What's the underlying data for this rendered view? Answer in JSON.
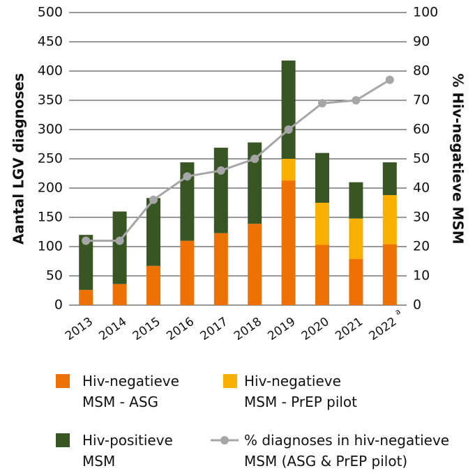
{
  "chart_data": {
    "type": "bar",
    "categories": [
      "2013",
      "2014",
      "2015",
      "2016",
      "2017",
      "2018",
      "2019",
      "2020",
      "2021",
      "2022"
    ],
    "category_footnote": {
      "index": 9,
      "mark": "a"
    },
    "ylabel": "Aantal LGV diagnoses",
    "y2label": "% Hiv-negatieve MSM",
    "ylim": [
      0,
      500
    ],
    "yticks": [
      0,
      50,
      100,
      150,
      200,
      250,
      300,
      350,
      400,
      450,
      500
    ],
    "y2lim": [
      0,
      100
    ],
    "y2ticks": [
      0,
      10,
      20,
      30,
      40,
      50,
      60,
      70,
      80,
      90,
      100
    ],
    "grid": true,
    "stacked": true,
    "series": [
      {
        "name": "Hiv-negatieve MSM - ASG",
        "color": "#ee7203",
        "values": [
          26,
          36,
          67,
          110,
          123,
          139,
          213,
          103,
          79,
          104
        ]
      },
      {
        "name": "Hiv-negatieve MSM - PrEP pilot",
        "color": "#f9b000",
        "values": [
          0,
          0,
          0,
          0,
          0,
          0,
          37,
          72,
          69,
          84
        ]
      },
      {
        "name": "Hiv-positieve MSM",
        "color": "#385623",
        "values": [
          94,
          124,
          116,
          134,
          146,
          139,
          168,
          85,
          62,
          56
        ]
      },
      {
        "name": "% diagnoses in hiv-negatieve MSM (ASG & PrEP pilot)",
        "color": "#a6a6a6",
        "type": "line",
        "axis": "y2",
        "values": [
          22,
          22,
          36,
          44,
          46,
          50,
          60,
          69,
          70,
          77
        ]
      }
    ]
  }
}
